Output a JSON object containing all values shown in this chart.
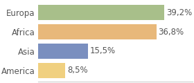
{
  "categories": [
    "Europa",
    "Africa",
    "Asia",
    "America"
  ],
  "values": [
    39.2,
    36.8,
    15.5,
    8.5
  ],
  "labels": [
    "39,2%",
    "36,8%",
    "15,5%",
    "8,5%"
  ],
  "bar_colors": [
    "#a8bf8a",
    "#e8b87a",
    "#7a8fbf",
    "#f0d080"
  ],
  "background_color": "#ffffff",
  "xlim": [
    0,
    48
  ],
  "bar_height": 0.78,
  "label_fontsize": 8.5,
  "category_fontsize": 8.5,
  "label_color": "#555555",
  "spine_color": "#cccccc"
}
